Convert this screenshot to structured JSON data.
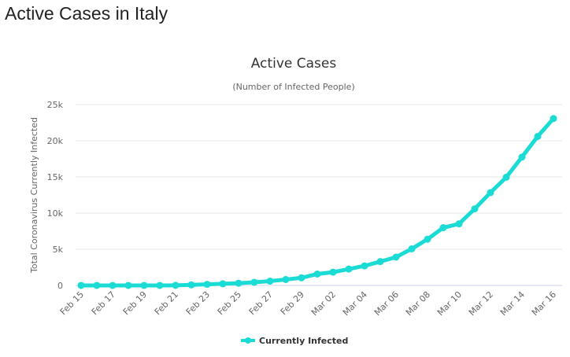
{
  "page": {
    "title": "Active Cases in Italy"
  },
  "chart_data": {
    "type": "line",
    "title": "Active Cases",
    "subtitle": "(Number of Infected People)",
    "xlabel": "",
    "ylabel": "Total Coronavirus Currently Infected",
    "ylim": [
      0,
      25000
    ],
    "yticks": [
      0,
      5000,
      10000,
      15000,
      20000,
      25000
    ],
    "ytick_labels": [
      "0",
      "5k",
      "10k",
      "15k",
      "20k",
      "25k"
    ],
    "grid": true,
    "legend_position": "bottom-center",
    "color": "#1bdbd5",
    "x": [
      "Feb 15",
      "Feb 16",
      "Feb 17",
      "Feb 18",
      "Feb 19",
      "Feb 20",
      "Feb 21",
      "Feb 22",
      "Feb 23",
      "Feb 24",
      "Feb 25",
      "Feb 26",
      "Feb 27",
      "Feb 28",
      "Feb 29",
      "Mar 01",
      "Mar 02",
      "Mar 03",
      "Mar 04",
      "Mar 05",
      "Mar 06",
      "Mar 07",
      "Mar 08",
      "Mar 09",
      "Mar 10",
      "Mar 11",
      "Mar 12",
      "Mar 13",
      "Mar 14",
      "Mar 15",
      "Mar 16"
    ],
    "xtick_labels": [
      "Feb 15",
      "Feb 17",
      "Feb 19",
      "Feb 21",
      "Feb 23",
      "Feb 25",
      "Feb 27",
      "Feb 29",
      "Mar 02",
      "Mar 04",
      "Mar 06",
      "Mar 08",
      "Mar 10",
      "Mar 12",
      "Mar 14",
      "Mar 16"
    ],
    "series": [
      {
        "name": "Currently Infected",
        "values": [
          3,
          3,
          3,
          3,
          3,
          3,
          20,
          79,
          150,
          227,
          311,
          438,
          593,
          821,
          1053,
          1577,
          1835,
          2263,
          2706,
          3296,
          3916,
          5061,
          6387,
          7985,
          8514,
          10590,
          12839,
          14955,
          17750,
          20603,
          23073
        ]
      }
    ]
  }
}
